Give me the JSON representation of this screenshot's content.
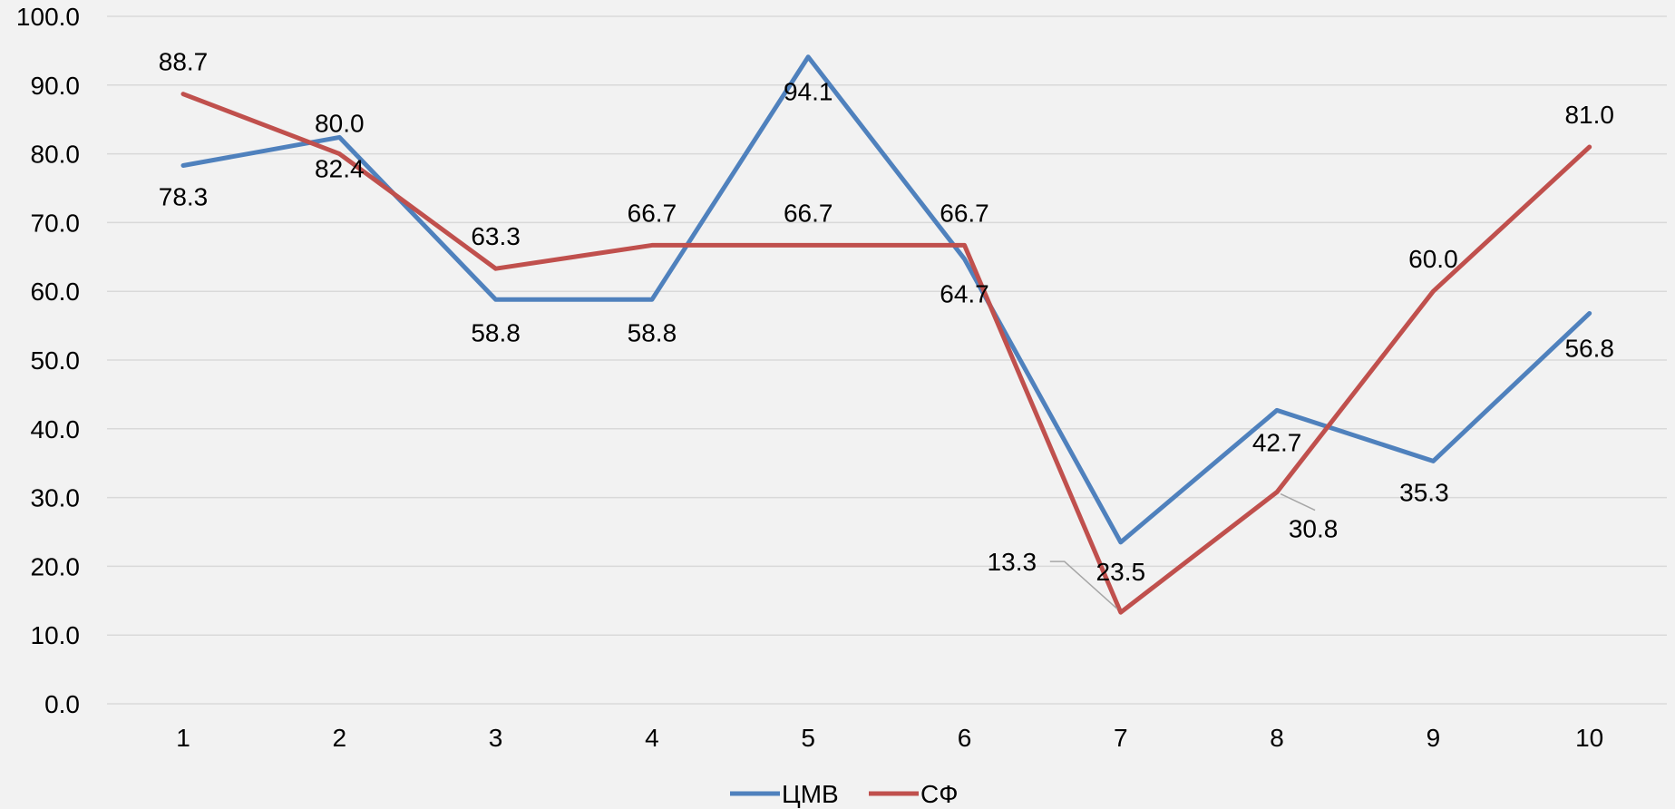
{
  "chart_data": {
    "type": "line",
    "title": "",
    "xlabel": "",
    "ylabel": "",
    "categories": [
      "1",
      "2",
      "3",
      "4",
      "5",
      "6",
      "7",
      "8",
      "9",
      "10"
    ],
    "ylim": [
      0,
      100
    ],
    "yticks": [
      "0.0",
      "10.0",
      "20.0",
      "30.0",
      "40.0",
      "50.0",
      "60.0",
      "70.0",
      "80.0",
      "90.0",
      "100.0"
    ],
    "grid": true,
    "legend_position": "bottom",
    "series": [
      {
        "name": "ЦМВ",
        "color": "#4f81bd",
        "values": [
          78.3,
          82.4,
          58.8,
          58.8,
          94.1,
          64.7,
          23.5,
          42.7,
          35.3,
          56.8
        ],
        "labels": [
          "78.3",
          "82.4",
          "58.8",
          "58.8",
          "94.1",
          "64.7",
          "23.5",
          "42.7",
          "35.3",
          "56.8"
        ]
      },
      {
        "name": "СФ",
        "color": "#c0504d",
        "values": [
          88.7,
          80.0,
          63.3,
          66.7,
          66.7,
          66.7,
          13.3,
          30.8,
          60.0,
          81.0
        ],
        "labels": [
          "88.7",
          "80.0",
          "63.3",
          "66.7",
          "66.7",
          "66.7",
          "13.3",
          "30.8",
          "60.0",
          "81.0"
        ]
      }
    ]
  }
}
